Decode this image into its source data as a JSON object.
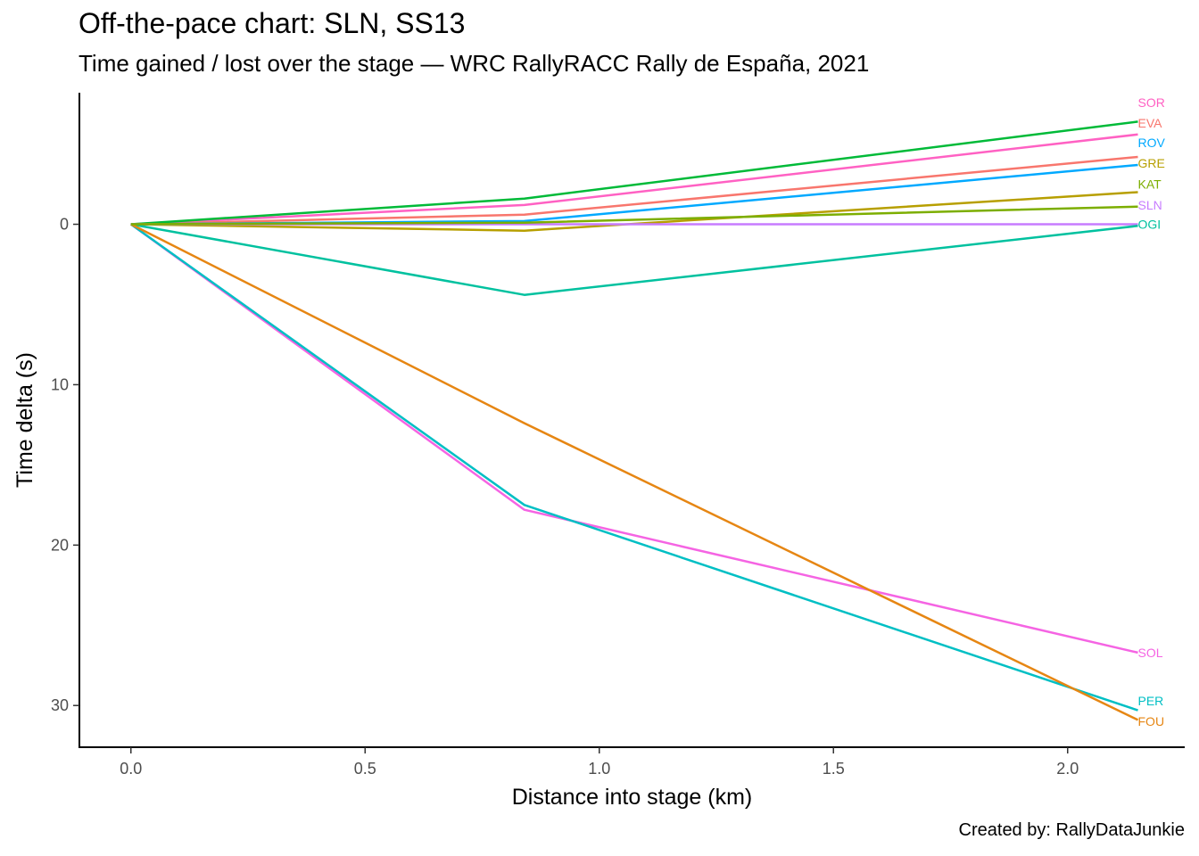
{
  "chart_data": {
    "type": "line",
    "title": "Off-the-pace chart: SLN, SS13",
    "subtitle": "Time gained / lost over the stage — WRC RallyRACC Rally de España, 2021",
    "caption": "Created by: RallyDataJunkie",
    "xlabel": "Distance into stage (km)",
    "ylabel": "Time delta (s)",
    "xlim": [
      -0.11,
      2.25
    ],
    "ylim": [
      -8.2,
      32.6
    ],
    "y_reversed": true,
    "x_ticks": [
      0.0,
      0.5,
      1.0,
      1.5,
      2.0
    ],
    "x_tick_labels": [
      "0.0",
      "0.5",
      "1.0",
      "1.5",
      "2.0"
    ],
    "y_ticks": [
      0,
      10,
      20,
      30
    ],
    "y_tick_labels": [
      "0",
      "10",
      "20",
      "30"
    ],
    "grid": false,
    "legend": "none",
    "x": [
      0.0,
      0.84,
      2.15
    ],
    "series": [
      {
        "name": "SOR",
        "color": "#FF61C3",
        "values": [
          0,
          -1.2,
          -5.6
        ]
      },
      {
        "name": "EVA",
        "color": "#F8766D",
        "values": [
          0,
          -0.6,
          -4.2
        ]
      },
      {
        "name": "ROV",
        "color": "#00A9FF",
        "values": [
          0,
          -0.2,
          -3.7
        ]
      },
      {
        "name": "GRE",
        "color": "#B79F00",
        "values": [
          0,
          0.4,
          -2.0
        ]
      },
      {
        "name": "KAT",
        "color": "#00BA38",
        "values": [
          0,
          -1.6,
          -6.4
        ]
      },
      {
        "name": "SLN",
        "color": "#C77CFF",
        "values": [
          0,
          0,
          0
        ]
      },
      {
        "name": "OGI",
        "color": "#00C19F",
        "values": [
          0,
          4.4,
          0.1
        ]
      },
      {
        "name": "SOL",
        "color": "#F564E3",
        "values": [
          0,
          17.8,
          26.7
        ]
      },
      {
        "name": "PER",
        "color": "#00BFC4",
        "values": [
          0,
          17.5,
          30.3
        ]
      },
      {
        "name": "FOU",
        "color": "#E68613",
        "values": [
          0,
          12.4,
          30.9
        ]
      },
      {
        "name": "",
        "color": "#7CAE00",
        "values": [
          0,
          -0.1,
          -1.1
        ]
      }
    ],
    "line_colors_note_free": true,
    "end_labels": [
      {
        "text": "SOR",
        "color": "#FF61C3",
        "y": -7.6
      },
      {
        "text": "EVA",
        "color": "#F8766D",
        "y": -6.3
      },
      {
        "text": "ROV",
        "color": "#00A9FF",
        "y": -5.1
      },
      {
        "text": "GRE",
        "color": "#B79F00",
        "y": -3.8
      },
      {
        "text": "KAT",
        "color": "#7CAE00",
        "y": -2.5
      },
      {
        "text": "SLN",
        "color": "#C77CFF",
        "y": -1.2
      },
      {
        "text": "OGI",
        "color": "#00C19F",
        "y": 0.0
      },
      {
        "text": "SOL",
        "color": "#F564E3",
        "y": 26.7
      },
      {
        "text": "PER",
        "color": "#00BFC4",
        "y": 29.7
      },
      {
        "text": "FOU",
        "color": "#E68613",
        "y": 31.0
      }
    ]
  }
}
